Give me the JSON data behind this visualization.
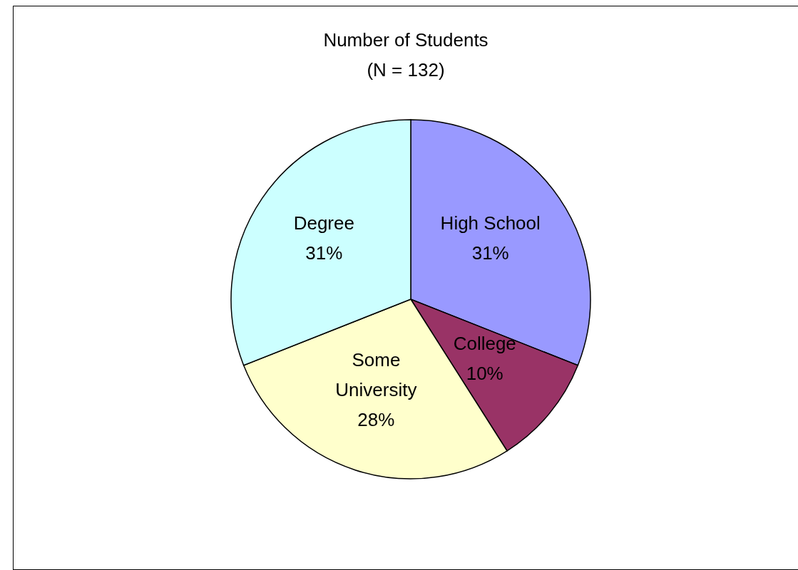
{
  "chart_data": {
    "type": "pie",
    "title": "Number of Students",
    "subtitle": "(N = 132)",
    "categories": [
      "High School",
      "College",
      "Some University",
      "Degree"
    ],
    "values": [
      31,
      10,
      28,
      31
    ],
    "colors": [
      "#9999ff",
      "#993366",
      "#ffffcc",
      "#ccffff"
    ],
    "value_labels": [
      "31%",
      "10%",
      "28%",
      "31%"
    ]
  }
}
